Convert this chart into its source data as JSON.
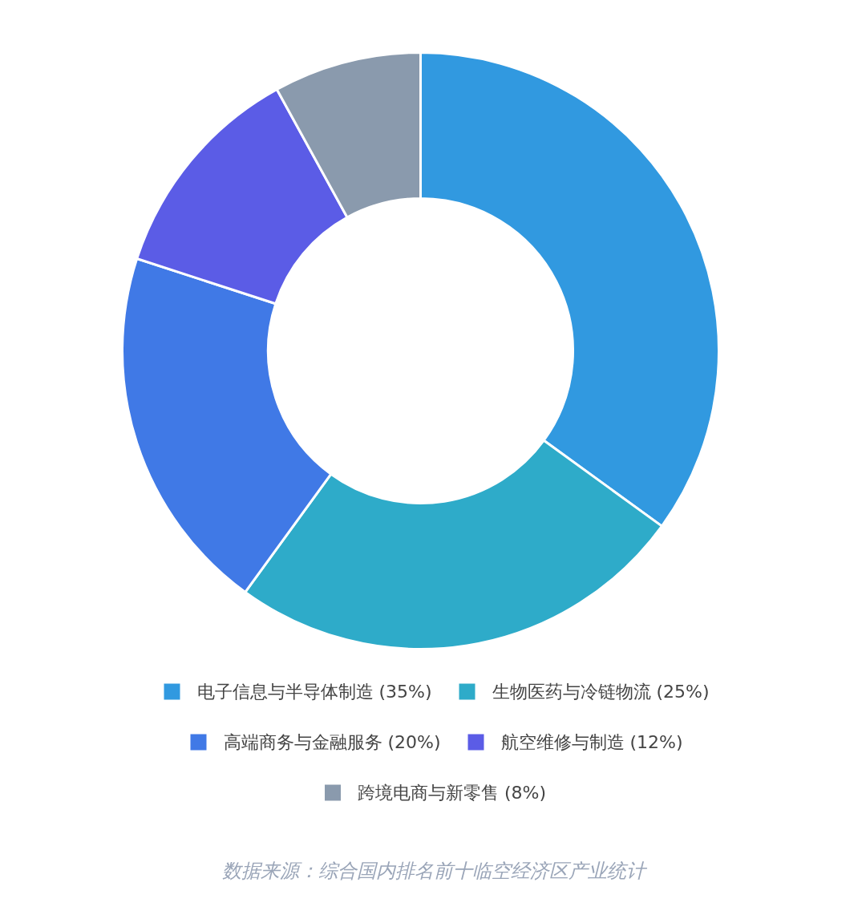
{
  "chart_data": {
    "type": "donut",
    "categories": [
      "电子信息与半导体制造 (35%)",
      "生物医药与冷链物流 (25%)",
      "高端商务与金融服务 (20%)",
      "航空维修与制造 (12%)",
      "跨境电商与新零售 (8%)"
    ],
    "values": [
      35,
      25,
      20,
      12,
      8
    ],
    "colors": [
      "#3199e0",
      "#2eabc9",
      "#4079e6",
      "#5b5ce6",
      "#8a9aad"
    ],
    "legend": "bottom",
    "annotations": [
      "数据来源：综合国内排名前十临空经济区产业统计"
    ]
  }
}
